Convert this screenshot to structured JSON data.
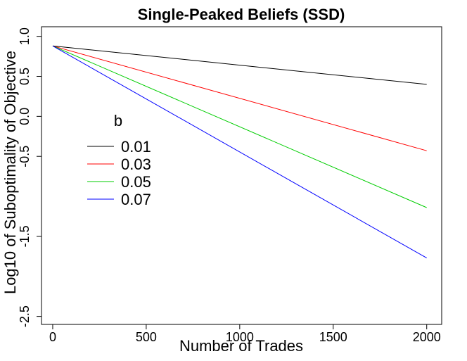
{
  "chart_data": {
    "type": "line",
    "title": "Single-Peaked Beliefs (SSD)",
    "xlabel": "Number of Trades",
    "ylabel": "Log10 of Suboptimality of Objective",
    "xlim": [
      -60,
      2080
    ],
    "ylim": [
      -2.6,
      1.12
    ],
    "x_ticks": [
      0,
      500,
      1000,
      1500,
      2000
    ],
    "x_tick_labels": [
      "0",
      "500",
      "1000",
      "1500",
      "2000"
    ],
    "y_ticks": [
      1.0,
      0.5,
      0.0,
      -0.5,
      -1.5,
      -2.5
    ],
    "y_tick_labels": [
      "1.0",
      "0.5",
      "0.0",
      "-0.5",
      "-1.5",
      "-2.5"
    ],
    "grid": false,
    "legend": {
      "title": "b",
      "position": "left-middle",
      "entries": [
        "0.01",
        "0.03",
        "0.05",
        "0.07"
      ]
    },
    "series": [
      {
        "name": "0.01",
        "color": "#000000",
        "x": [
          0,
          2000
        ],
        "y": [
          0.88,
          0.4
        ]
      },
      {
        "name": "0.03",
        "color": "#ff0000",
        "x": [
          0,
          2000
        ],
        "y": [
          0.88,
          -0.43
        ]
      },
      {
        "name": "0.05",
        "color": "#00cd00",
        "x": [
          0,
          2000
        ],
        "y": [
          0.88,
          -1.14
        ]
      },
      {
        "name": "0.07",
        "color": "#0000ff",
        "x": [
          0,
          2000
        ],
        "y": [
          0.88,
          -1.77
        ]
      }
    ]
  }
}
